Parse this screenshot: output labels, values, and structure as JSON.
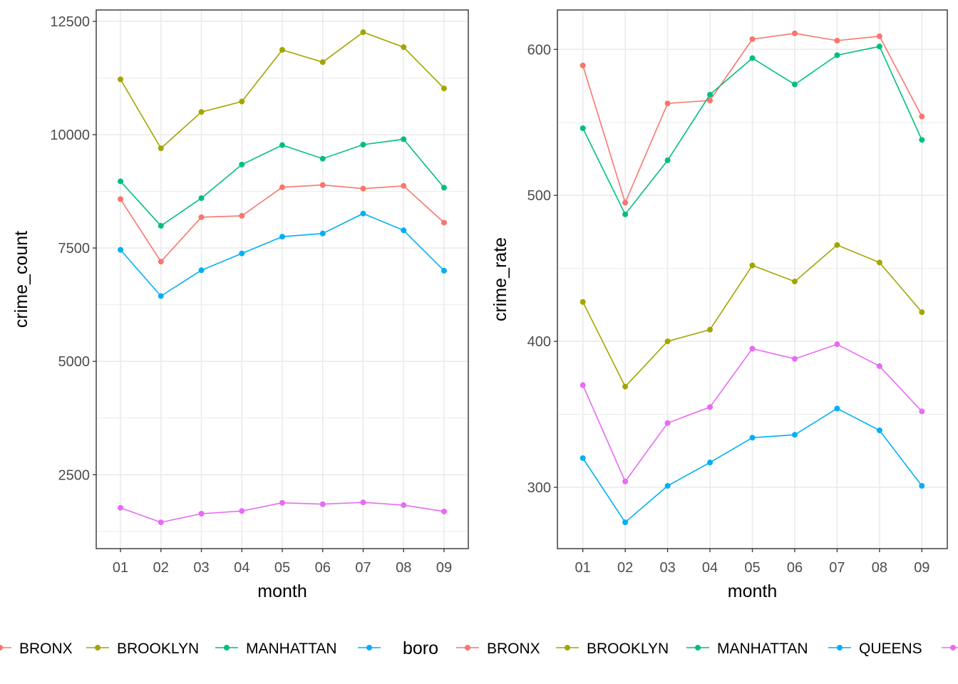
{
  "colors": {
    "BRONX": "#F8766D",
    "BROOKLYN": "#A3A500",
    "MANHATTAN": "#00BF7D",
    "QUEENS": "#00B0F6",
    "STATEN ISLAND": "#E76BF3",
    "grid": "#ebebeb",
    "frame": "#333333"
  },
  "legend_left": {
    "items": [
      {
        "label": "BRONX",
        "color_key": "BRONX"
      },
      {
        "label": "BROOKLYN",
        "color_key": "BROOKLYN"
      },
      {
        "label": "MANHATTAN",
        "color_key": "MANHATTAN"
      },
      {
        "label": "",
        "color_key": "QUEENS"
      }
    ]
  },
  "legend_right": {
    "title": "boro",
    "items": [
      {
        "label": "BRONX",
        "color_key": "BRONX"
      },
      {
        "label": "BROOKLYN",
        "color_key": "BROOKLYN"
      },
      {
        "label": "MANHATTAN",
        "color_key": "MANHATTAN"
      },
      {
        "label": "QUEENS",
        "color_key": "QUEENS"
      },
      {
        "label": "",
        "color_key": "STATEN ISLAND"
      }
    ]
  },
  "chart_data": [
    {
      "type": "line",
      "title": "",
      "xlabel": "month",
      "ylabel": "crime_count",
      "categories": [
        "01",
        "02",
        "03",
        "04",
        "05",
        "06",
        "07",
        "08",
        "09"
      ],
      "ylim": [
        870,
        12750
      ],
      "yticks": [
        2500,
        5000,
        7500,
        10000,
        12500
      ],
      "grid": true,
      "series": [
        {
          "color_key": "BRONX",
          "values": [
            8580,
            7200,
            8180,
            8210,
            8840,
            8890,
            8810,
            8870,
            8060
          ]
        },
        {
          "color_key": "BROOKLYN",
          "values": [
            11220,
            9700,
            10500,
            10730,
            11870,
            11600,
            12260,
            11930,
            11020
          ]
        },
        {
          "color_key": "MANHATTAN",
          "values": [
            8970,
            7990,
            8600,
            9340,
            9770,
            9470,
            9780,
            9900,
            8830
          ]
        },
        {
          "color_key": "QUEENS",
          "values": [
            7460,
            6440,
            7010,
            7380,
            7750,
            7820,
            8260,
            7890,
            7000
          ]
        },
        {
          "color_key": "STATEN ISLAND",
          "values": [
            1770,
            1450,
            1640,
            1700,
            1880,
            1850,
            1890,
            1830,
            1690
          ]
        }
      ]
    },
    {
      "type": "line",
      "title": "",
      "xlabel": "month",
      "ylabel": "crime_rate",
      "categories": [
        "01",
        "02",
        "03",
        "04",
        "05",
        "06",
        "07",
        "08",
        "09"
      ],
      "ylim": [
        258,
        627
      ],
      "yticks": [
        300,
        400,
        500,
        600
      ],
      "grid": true,
      "series": [
        {
          "color_key": "BRONX",
          "values": [
            589,
            495,
            563,
            565,
            607,
            611,
            606,
            609,
            554
          ]
        },
        {
          "color_key": "BROOKLYN",
          "values": [
            427,
            369,
            400,
            408,
            452,
            441,
            466,
            454,
            420
          ]
        },
        {
          "color_key": "MANHATTAN",
          "values": [
            546,
            487,
            524,
            569,
            594,
            576,
            596,
            602,
            538
          ]
        },
        {
          "color_key": "QUEENS",
          "values": [
            320,
            276,
            301,
            317,
            334,
            336,
            354,
            339,
            301
          ]
        },
        {
          "color_key": "STATEN ISLAND",
          "values": [
            370,
            304,
            344,
            355,
            395,
            388,
            398,
            383,
            352
          ]
        }
      ]
    }
  ]
}
